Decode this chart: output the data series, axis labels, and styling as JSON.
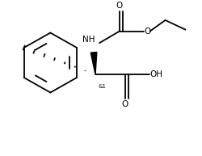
{
  "background_color": "#ffffff",
  "line_color": "#000000",
  "lw": 1.3,
  "fs": 7.5,
  "figsize": [
    2.5,
    1.93
  ],
  "dpi": 100,
  "xlim": [
    0,
    250
  ],
  "ylim": [
    0,
    193
  ]
}
